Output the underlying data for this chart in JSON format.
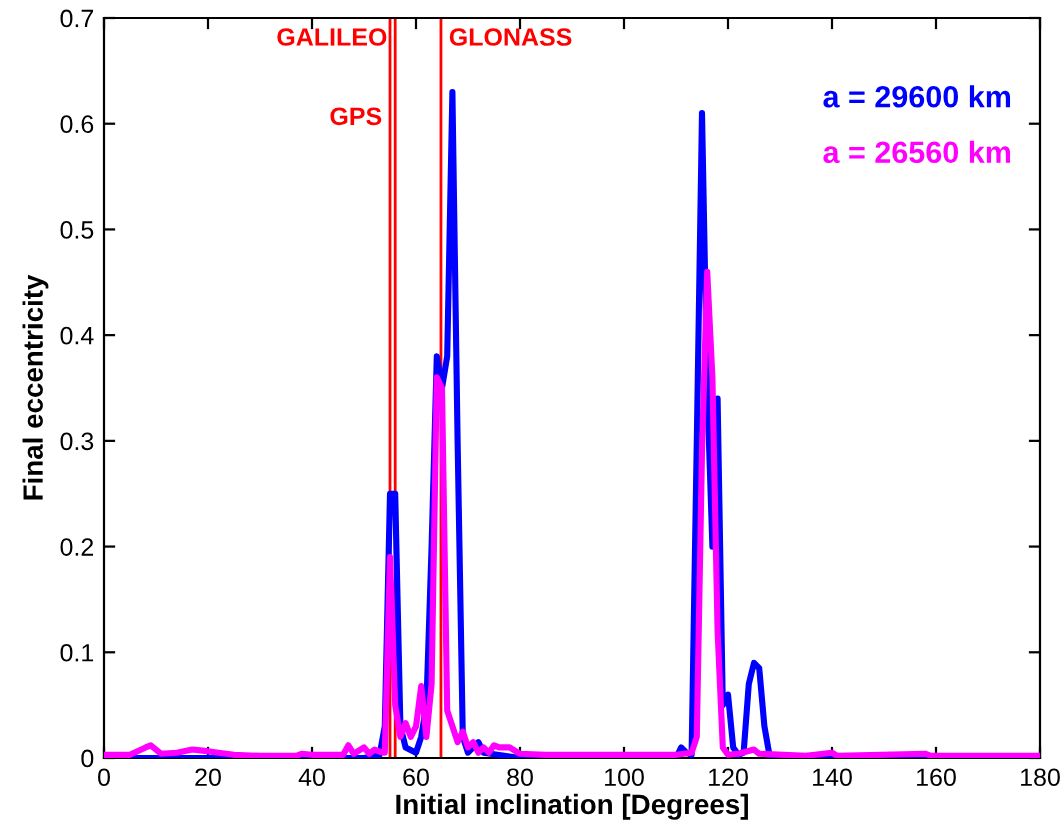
{
  "chart_data": {
    "type": "line",
    "xlabel": "Initial inclination [Degrees]",
    "ylabel": "Final eccentricity",
    "xlim": [
      0,
      180
    ],
    "ylim": [
      0,
      0.7
    ],
    "xticks": [
      0,
      20,
      40,
      60,
      80,
      100,
      120,
      140,
      160,
      180
    ],
    "yticks": [
      0,
      0.1,
      0.2,
      0.3,
      0.4,
      0.5,
      0.6,
      0.7
    ],
    "grid": false,
    "legend": false,
    "marker": "none",
    "line_style": "solid",
    "ref_lines": [
      {
        "axis": "x",
        "value": 56,
        "label": "GALILEO",
        "color": "#ff0000"
      },
      {
        "axis": "x",
        "value": 55,
        "label": "GPS",
        "color": "#ff0000"
      },
      {
        "axis": "x",
        "value": 64.8,
        "label": "GLONASS",
        "color": "#ff0000"
      }
    ],
    "series": [
      {
        "name": "a = 29600 km",
        "color": "#0000ff",
        "x": [
          0,
          50,
          53,
          54,
          55,
          56,
          57,
          58,
          60,
          61,
          62,
          63,
          64,
          65,
          66,
          67,
          68,
          69,
          70,
          72,
          73,
          80,
          110,
          111,
          112,
          113,
          114,
          115,
          116,
          117,
          118,
          119,
          120,
          121,
          122,
          123,
          124,
          125,
          126,
          127,
          128,
          130,
          150,
          151,
          152,
          157,
          158,
          159,
          180
        ],
        "values": [
          0,
          0,
          0.003,
          0.03,
          0.25,
          0.25,
          0.03,
          0.01,
          0.005,
          0.02,
          0.05,
          0.2,
          0.38,
          0.35,
          0.38,
          0.63,
          0.3,
          0.02,
          0.005,
          0.015,
          0.005,
          0,
          0,
          0.01,
          0.005,
          0.003,
          0.3,
          0.61,
          0.35,
          0.2,
          0.34,
          0.05,
          0.06,
          0.01,
          0.003,
          0.005,
          0.07,
          0.09,
          0.085,
          0.03,
          0.002,
          0,
          0,
          0.003,
          0,
          0,
          0.003,
          0,
          0
        ]
      },
      {
        "name": "a = 26560 km",
        "color": "#ff00ff",
        "x": [
          0,
          5,
          8,
          9,
          11,
          14,
          17,
          19,
          22,
          25,
          30,
          37,
          38,
          40,
          46,
          47,
          48,
          50,
          51,
          52,
          53,
          54,
          55,
          56,
          57,
          58,
          59,
          60,
          61,
          62,
          63,
          64,
          65,
          66,
          67,
          68,
          69,
          70,
          71,
          72,
          73,
          74,
          75,
          76,
          78,
          80,
          85,
          110,
          113,
          114,
          115,
          116,
          117,
          118,
          119,
          120,
          122,
          125,
          126,
          135,
          140,
          141,
          158,
          159,
          180
        ],
        "values": [
          0.003,
          0.003,
          0.01,
          0.012,
          0.004,
          0.005,
          0.008,
          0.007,
          0.005,
          0.003,
          0.002,
          0.002,
          0.004,
          0.003,
          0.003,
          0.012,
          0.004,
          0.01,
          0.004,
          0.008,
          0.006,
          0.005,
          0.19,
          0.05,
          0.02,
          0.033,
          0.02,
          0.03,
          0.068,
          0.02,
          0.07,
          0.36,
          0.35,
          0.045,
          0.03,
          0.015,
          0.025,
          0.01,
          0.015,
          0.005,
          0.01,
          0.005,
          0.012,
          0.01,
          0.01,
          0.004,
          0.003,
          0.003,
          0.005,
          0.02,
          0.29,
          0.46,
          0.36,
          0.12,
          0.01,
          0.003,
          0.004,
          0.008,
          0.004,
          0.002,
          0.005,
          0.002,
          0.004,
          0.002,
          0.002
        ]
      }
    ]
  }
}
